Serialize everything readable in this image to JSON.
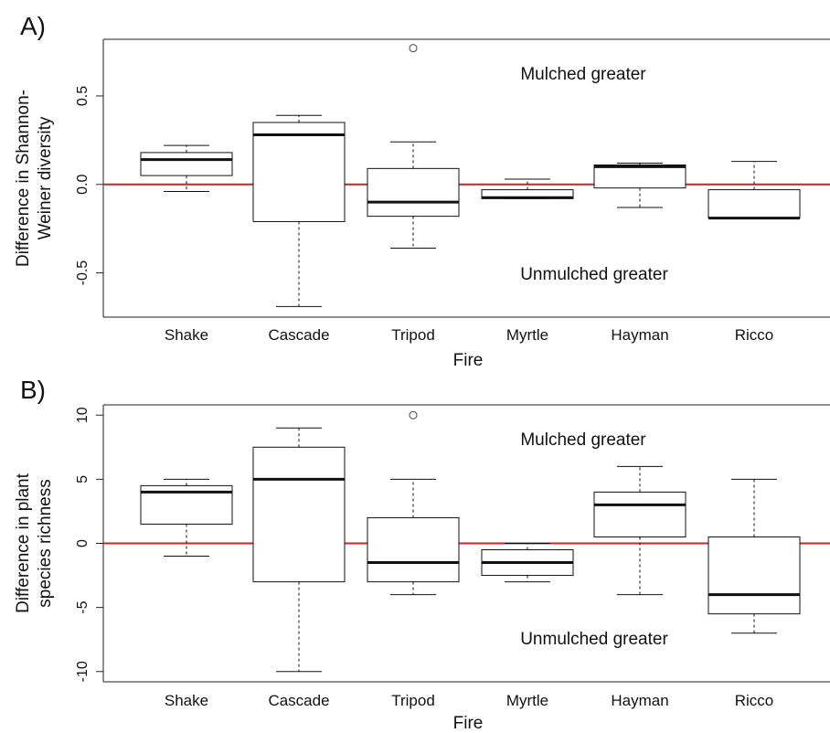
{
  "chart_data": [
    {
      "type": "box",
      "panel_label": "A)",
      "xlabel": "Fire",
      "ylabel_lines": [
        "Difference in Shannon-",
        "Weiner diversity"
      ],
      "categories": [
        "Shake",
        "Cascade",
        "Tripod",
        "Myrtle",
        "Hayman",
        "Ricco"
      ],
      "ylim": [
        -0.75,
        0.82
      ],
      "yticks": [
        -0.5,
        0.0,
        0.5
      ],
      "ytick_labels": [
        "-0.5",
        "0.0",
        "0.5"
      ],
      "reference_line": 0,
      "annotations": [
        "Mulched greater",
        "Unmulched greater"
      ],
      "boxes": [
        {
          "category": "Shake",
          "whisker_low": -0.04,
          "q1": 0.05,
          "median": 0.14,
          "q3": 0.18,
          "whisker_high": 0.22,
          "outliers": []
        },
        {
          "category": "Cascade",
          "whisker_low": -0.69,
          "q1": -0.21,
          "median": 0.28,
          "q3": 0.35,
          "whisker_high": 0.39,
          "outliers": []
        },
        {
          "category": "Tripod",
          "whisker_low": -0.36,
          "q1": -0.18,
          "median": -0.1,
          "q3": 0.09,
          "whisker_high": 0.24,
          "outliers": [
            0.77
          ]
        },
        {
          "category": "Myrtle",
          "whisker_low": -0.08,
          "q1": -0.08,
          "median": -0.075,
          "q3": -0.03,
          "whisker_high": 0.03,
          "outliers": []
        },
        {
          "category": "Hayman",
          "whisker_low": -0.13,
          "q1": -0.02,
          "median": 0.1,
          "q3": 0.11,
          "whisker_high": 0.12,
          "outliers": []
        },
        {
          "category": "Ricco",
          "whisker_low": -0.19,
          "q1": -0.19,
          "median": -0.19,
          "q3": -0.03,
          "whisker_high": 0.13,
          "outliers": []
        }
      ]
    },
    {
      "type": "box",
      "panel_label": "B)",
      "xlabel": "Fire",
      "ylabel_lines": [
        "Difference in plant",
        "species richness"
      ],
      "categories": [
        "Shake",
        "Cascade",
        "Tripod",
        "Myrtle",
        "Hayman",
        "Ricco"
      ],
      "ylim": [
        -10.8,
        10.8
      ],
      "yticks": [
        -10,
        -5,
        0,
        5,
        10
      ],
      "ytick_labels": [
        "-10",
        "-5",
        "0",
        "5",
        "10"
      ],
      "reference_line": 0,
      "annotations": [
        "Mulched greater",
        "Unmulched greater"
      ],
      "boxes": [
        {
          "category": "Shake",
          "whisker_low": -1,
          "q1": 1.5,
          "median": 4,
          "q3": 4.5,
          "whisker_high": 5,
          "outliers": []
        },
        {
          "category": "Cascade",
          "whisker_low": -10,
          "q1": -3,
          "median": 5,
          "q3": 7.5,
          "whisker_high": 9,
          "outliers": []
        },
        {
          "category": "Tripod",
          "whisker_low": -4,
          "q1": -3,
          "median": -1.5,
          "q3": 2,
          "whisker_high": 5,
          "outliers": [
            10
          ]
        },
        {
          "category": "Myrtle",
          "whisker_low": -3,
          "q1": -2.5,
          "median": -1.5,
          "q3": -0.5,
          "whisker_high": 0,
          "outliers": []
        },
        {
          "category": "Hayman",
          "whisker_low": -4,
          "q1": 0.5,
          "median": 3,
          "q3": 4,
          "whisker_high": 6,
          "outliers": []
        },
        {
          "category": "Ricco",
          "whisker_low": -7,
          "q1": -5.5,
          "median": -4,
          "q3": 0.5,
          "whisker_high": 5,
          "outliers": []
        }
      ]
    }
  ],
  "colors": {
    "reference_line": "#cc2222",
    "box_stroke": "#111111",
    "box_fill": "#ffffff"
  }
}
